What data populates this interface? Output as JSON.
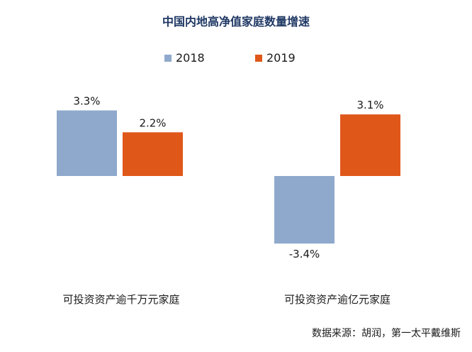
{
  "chart_data": {
    "type": "bar",
    "title": "中国内地高净值家庭数量增速",
    "categories": [
      "可投资资产逾千万元家庭",
      "可投资资产逾亿元家庭"
    ],
    "series": [
      {
        "name": "2018",
        "color": "#8fa9cc",
        "values": [
          3.3,
          -3.4
        ],
        "labels": [
          "3.3%",
          "-3.4%"
        ]
      },
      {
        "name": "2019",
        "color": "#e0571a",
        "values": [
          2.2,
          3.1
        ],
        "labels": [
          "2.2%",
          "3.1%"
        ]
      }
    ],
    "legend_position": "top-center",
    "grid": false
  },
  "source": "数据来源：胡润，第一太平戴维斯"
}
